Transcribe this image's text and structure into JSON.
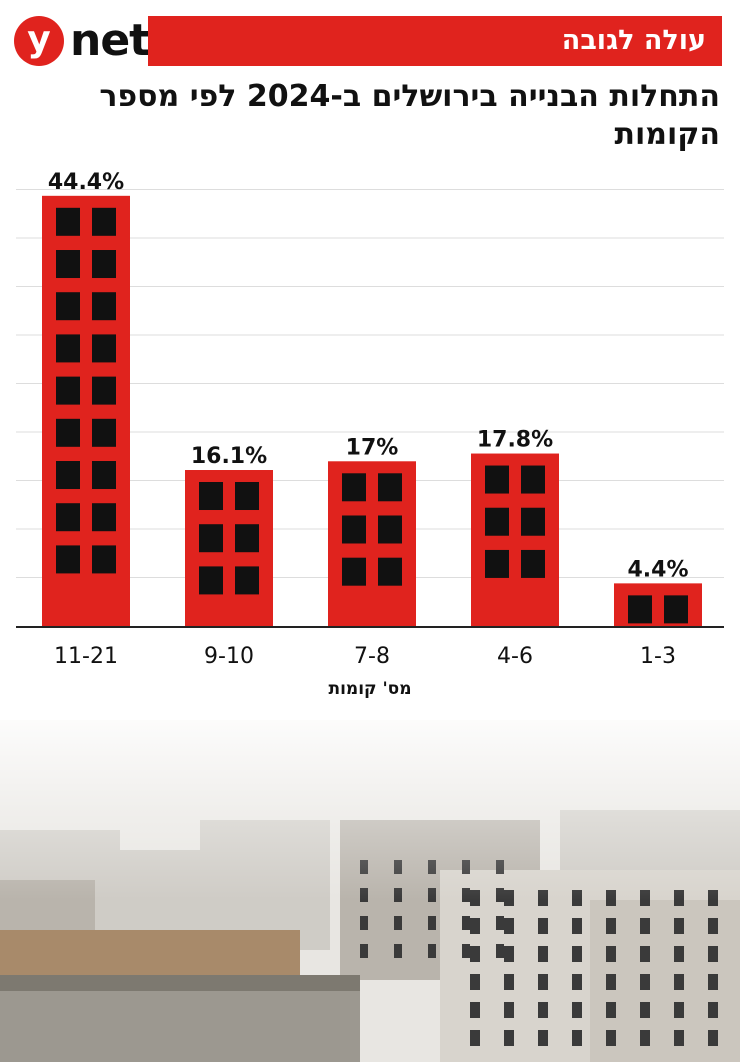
{
  "brand": {
    "logo_y": "y",
    "logo_net": "net"
  },
  "banner": {
    "label": "עולה לגובה"
  },
  "chart_data": {
    "type": "bar",
    "title": "התחלות הבנייה בירושלים ב-2024 לפי מספר הקומות",
    "xlabel": "מס' קומות",
    "ylabel": "",
    "categories": [
      "11-21",
      "9-10",
      "7-8",
      "4-6",
      "1-3"
    ],
    "values": [
      44.4,
      16.1,
      17,
      17.8,
      4.4
    ],
    "value_labels": [
      "44.4%",
      "16.1%",
      "17%",
      "17.8%",
      "4.4%"
    ],
    "window_rows": [
      9,
      3,
      3,
      3,
      1
    ],
    "ylim": [
      0,
      45
    ],
    "grid": true,
    "legend": "none"
  },
  "colors": {
    "bar": "#e0231e",
    "window": "#111111",
    "grid": "#dddddd",
    "axis": "#222222",
    "text": "#111111"
  }
}
